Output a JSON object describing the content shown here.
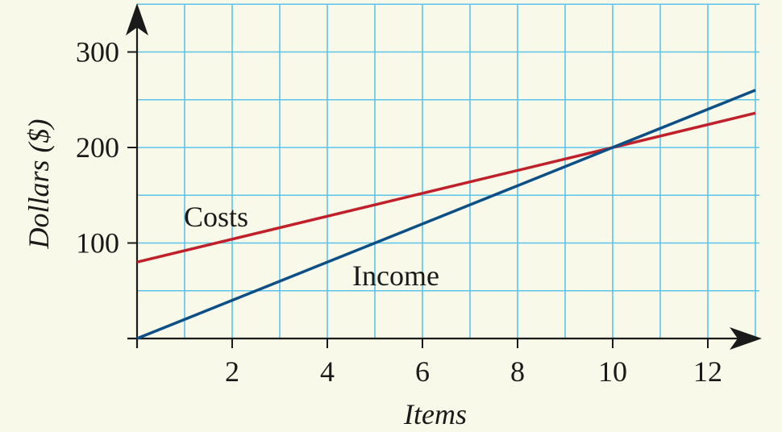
{
  "chart_data": {
    "type": "line",
    "title": "",
    "xlabel": "Items",
    "ylabel": "Dollars ($)",
    "xlim": [
      0,
      13
    ],
    "ylim": [
      0,
      340
    ],
    "x_ticks": [
      2,
      4,
      6,
      8,
      10,
      12
    ],
    "y_ticks": [
      100,
      200,
      300
    ],
    "grid": true,
    "grid_minor_x": 1,
    "grid_minor_y": 50,
    "series": [
      {
        "name": "Costs",
        "x": [
          0,
          13
        ],
        "y": [
          80,
          236
        ],
        "color": "#c0202a"
      },
      {
        "name": "Income",
        "x": [
          0,
          13
        ],
        "y": [
          0,
          260
        ],
        "color": "#0b4f86"
      }
    ],
    "colors": {
      "background": "#f8f9e8",
      "grid": "#5cc4ea",
      "axis": "#1a1a1a"
    }
  }
}
